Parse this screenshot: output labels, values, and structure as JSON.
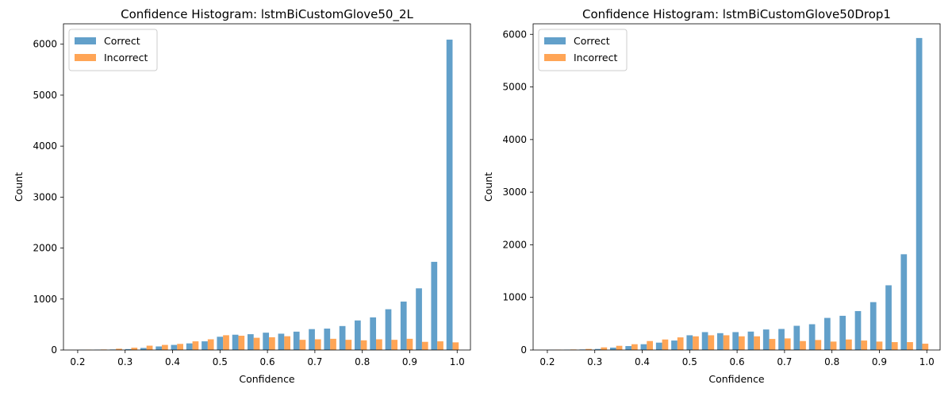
{
  "chart_data": [
    {
      "type": "bar",
      "title": "Confidence Histogram: lstmBiCustomGlove50_2L",
      "xlabel": "Confidence",
      "ylabel": "Count",
      "xlim": [
        0.17,
        1.028
      ],
      "ylim": [
        0,
        6400
      ],
      "xticks": [
        "0.2",
        "0.3",
        "0.4",
        "0.5",
        "0.6",
        "0.7",
        "0.8",
        "0.9",
        "1.0"
      ],
      "yticks": [
        "0",
        "1000",
        "2000",
        "3000",
        "4000",
        "5000",
        "6000"
      ],
      "legend_position": "top-left",
      "x": [
        0.2,
        0.2323,
        0.2645,
        0.2968,
        0.329,
        0.3613,
        0.3935,
        0.4258,
        0.458,
        0.4903,
        0.5226,
        0.5548,
        0.5871,
        0.6193,
        0.6516,
        0.6839,
        0.7161,
        0.7484,
        0.7806,
        0.8129,
        0.8452,
        0.8774,
        0.9097,
        0.9419,
        0.9742
      ],
      "series": [
        {
          "name": "Correct",
          "color": "#1f77b4",
          "values": [
            3,
            6,
            10,
            18,
            40,
            70,
            100,
            130,
            170,
            260,
            300,
            310,
            340,
            320,
            360,
            410,
            420,
            470,
            580,
            640,
            800,
            950,
            1210,
            1730,
            6090
          ]
        },
        {
          "name": "Incorrect",
          "color": "#ff7f0e",
          "values": [
            5,
            10,
            25,
            45,
            85,
            100,
            120,
            170,
            210,
            290,
            280,
            240,
            250,
            270,
            200,
            210,
            220,
            200,
            190,
            210,
            200,
            220,
            160,
            170,
            150
          ]
        }
      ]
    },
    {
      "type": "bar",
      "title": "Confidence Histogram: lstmBiCustomGlove50Drop1",
      "xlabel": "Confidence",
      "ylabel": "Count",
      "xlim": [
        0.17,
        1.028
      ],
      "ylim": [
        0,
        6200
      ],
      "xticks": [
        "0.2",
        "0.3",
        "0.4",
        "0.5",
        "0.6",
        "0.7",
        "0.8",
        "0.9",
        "1.0"
      ],
      "yticks": [
        "0",
        "1000",
        "2000",
        "3000",
        "4000",
        "5000",
        "6000"
      ],
      "legend_position": "top-left",
      "x": [
        0.2,
        0.2323,
        0.2645,
        0.2968,
        0.329,
        0.3613,
        0.3935,
        0.4258,
        0.458,
        0.4903,
        0.5226,
        0.5548,
        0.5871,
        0.6193,
        0.6516,
        0.6839,
        0.7161,
        0.7484,
        0.7806,
        0.8129,
        0.8452,
        0.8774,
        0.9097,
        0.9419,
        0.9742
      ],
      "series": [
        {
          "name": "Correct",
          "color": "#1f77b4",
          "values": [
            3,
            5,
            10,
            20,
            45,
            75,
            110,
            140,
            180,
            280,
            340,
            320,
            340,
            350,
            390,
            400,
            460,
            490,
            610,
            650,
            740,
            910,
            1230,
            1820,
            5930
          ]
        },
        {
          "name": "Incorrect",
          "color": "#ff7f0e",
          "values": [
            5,
            10,
            20,
            50,
            80,
            110,
            170,
            200,
            240,
            260,
            280,
            280,
            260,
            260,
            210,
            220,
            170,
            190,
            160,
            200,
            180,
            160,
            150,
            150,
            120
          ]
        }
      ]
    }
  ]
}
